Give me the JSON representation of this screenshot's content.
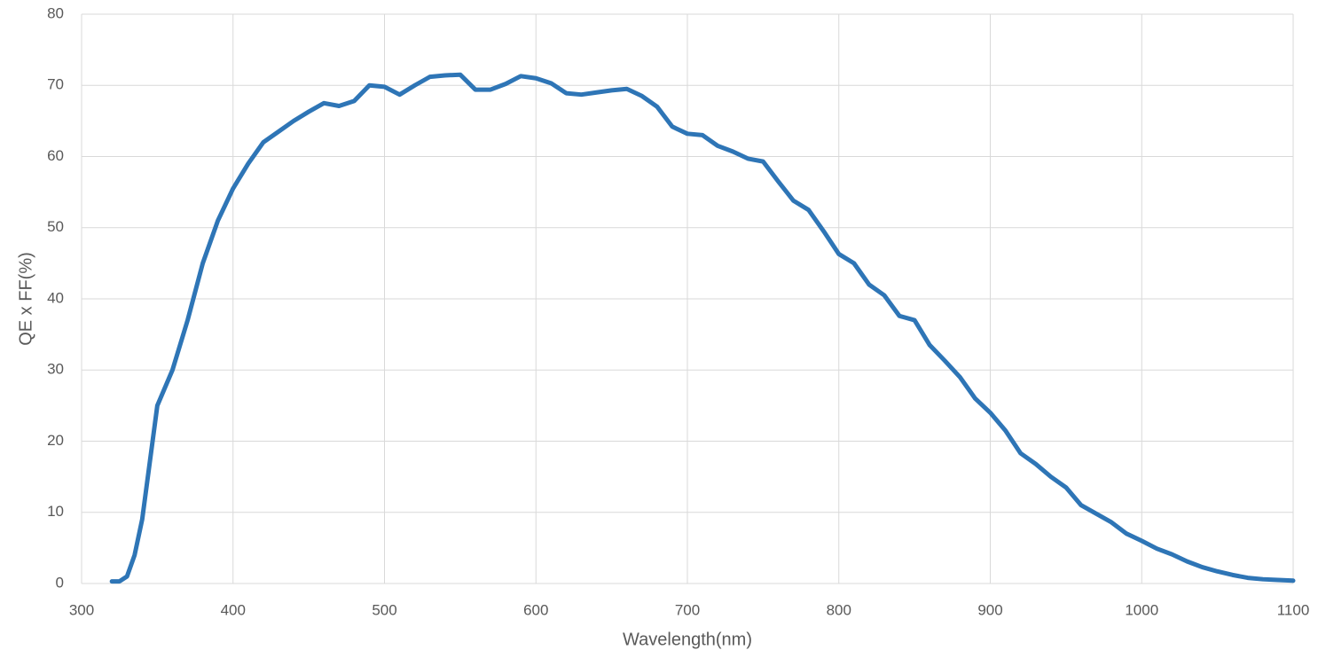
{
  "chart_data": {
    "type": "line",
    "x_label": "Wavelength(nm)",
    "y_label": "QE x FF(%)",
    "x": [
      320,
      325,
      330,
      335,
      340,
      345,
      350,
      360,
      370,
      380,
      390,
      400,
      410,
      420,
      430,
      440,
      450,
      460,
      470,
      480,
      490,
      500,
      510,
      520,
      530,
      540,
      550,
      560,
      570,
      580,
      590,
      600,
      610,
      620,
      630,
      640,
      650,
      660,
      670,
      680,
      690,
      700,
      710,
      720,
      730,
      740,
      750,
      760,
      770,
      780,
      790,
      800,
      810,
      820,
      830,
      840,
      850,
      860,
      870,
      880,
      890,
      900,
      910,
      920,
      930,
      940,
      950,
      960,
      970,
      980,
      990,
      1000,
      1010,
      1020,
      1030,
      1040,
      1050,
      1060,
      1070,
      1080,
      1090,
      1100
    ],
    "series": [
      {
        "color": "#2e75b6",
        "values": [
          0.3,
          0.3,
          1,
          4,
          9,
          17,
          25,
          30,
          37,
          45,
          51,
          55.5,
          59,
          62,
          63.5,
          65,
          66.3,
          67.5,
          67.1,
          67.8,
          70,
          69.8,
          68.7,
          70,
          71.2,
          71.4,
          71.5,
          69.4,
          69.4,
          70.2,
          71.3,
          71,
          70.3,
          68.9,
          68.7,
          69,
          69.3,
          69.5,
          68.5,
          67,
          64.2,
          63.2,
          63,
          61.5,
          60.7,
          59.7,
          59.3,
          56.5,
          53.8,
          52.5,
          49.5,
          46.3,
          45,
          42,
          40.5,
          37.6,
          37,
          33.5,
          31.3,
          29,
          26,
          24,
          21.5,
          18.3,
          16.8,
          15,
          13.5,
          11,
          9.8,
          8.6,
          7,
          6,
          4.9,
          4.1,
          3.1,
          2.3,
          1.7,
          1.2,
          0.8,
          0.6,
          0.5,
          0.4
        ]
      }
    ],
    "xlim": [
      300,
      1100
    ],
    "xticks": [
      300,
      400,
      500,
      600,
      700,
      800,
      900,
      1000,
      1100
    ],
    "ylim": [
      0,
      80
    ],
    "yticks": [
      0,
      10,
      20,
      30,
      40,
      50,
      60,
      70,
      80
    ],
    "grid": true
  }
}
